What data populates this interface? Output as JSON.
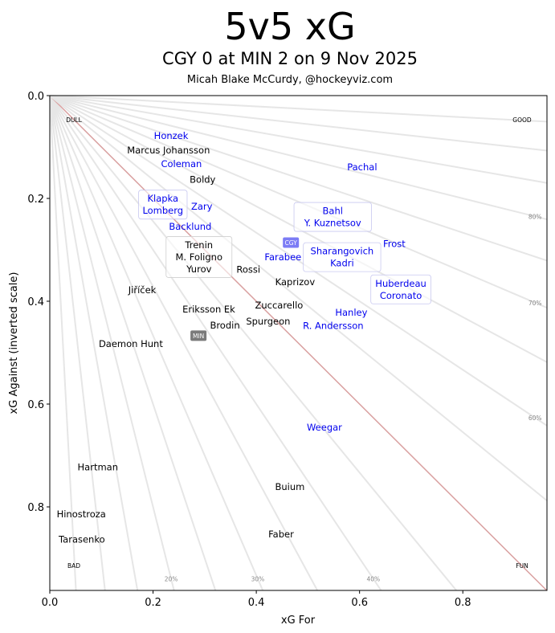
{
  "chart_data": {
    "type": "scatter",
    "title": "5v5 xG",
    "subtitle": "CGY 0 at MIN 2 on 9 Nov 2025",
    "credit": "Micah Blake McCurdy, @hockeyviz.com",
    "xlabel": "xG For",
    "ylabel": "xG Against (inverted scale)",
    "xlim": [
      0,
      0.963
    ],
    "ylim": [
      0,
      0.9625
    ],
    "y_inverted": true,
    "x_ticks": [
      "0.0",
      "0.2",
      "0.4",
      "0.6",
      "0.8"
    ],
    "y_ticks": [
      "0.0",
      "0.2",
      "0.4",
      "0.6",
      "0.8"
    ],
    "corner_labels": {
      "top_left": "DULL",
      "top_right": "GOOD",
      "bottom_left": "BAD",
      "bottom_right": "FUN"
    },
    "share_lines": [
      0.05,
      0.1,
      0.15,
      0.2,
      0.25,
      0.3,
      0.35,
      0.4,
      0.45,
      0.5,
      0.55,
      0.6,
      0.65,
      0.7,
      0.75,
      0.8,
      0.85,
      0.9,
      0.95
    ],
    "share_labels": [
      {
        "share": 0.2,
        "text": "20%"
      },
      {
        "share": 0.3,
        "text": "30%"
      },
      {
        "share": 0.4,
        "text": "40%"
      },
      {
        "share": 0.6,
        "text": "60%"
      },
      {
        "share": 0.7,
        "text": "70%"
      },
      {
        "share": 0.8,
        "text": "80%"
      }
    ],
    "colors": {
      "CGY": "#0000ee",
      "MIN": "#000000",
      "CGY_badge": "#7c7cf5",
      "MIN_badge": "#7a7a7a",
      "even_line": "#d9a0a0",
      "share_line": "#e6e6e6"
    },
    "teams": [
      {
        "name": "CGY",
        "x": 0.467,
        "y": 0.286
      },
      {
        "name": "MIN",
        "x": 0.288,
        "y": 0.467
      }
    ],
    "points": [
      {
        "names": [
          "Honzek"
        ],
        "team": "CGY",
        "x": 0.235,
        "y": 0.078
      },
      {
        "names": [
          "Coleman"
        ],
        "team": "CGY",
        "x": 0.255,
        "y": 0.133
      },
      {
        "names": [
          "Pachal"
        ],
        "team": "CGY",
        "x": 0.605,
        "y": 0.139
      },
      {
        "names": [
          "Klapka",
          "Lomberg"
        ],
        "team": "CGY",
        "x": 0.219,
        "y": 0.212,
        "grouped": true
      },
      {
        "names": [
          "Zary"
        ],
        "team": "CGY",
        "x": 0.257,
        "y": 0.216
      },
      {
        "names": [
          "Backlund"
        ],
        "team": "CGY",
        "x": 0.272,
        "y": 0.255
      },
      {
        "names": [
          "Bahl",
          "Y. Kuznetsov"
        ],
        "team": "CGY",
        "x": 0.548,
        "y": 0.236,
        "grouped": true
      },
      {
        "names": [
          "Sharangovich",
          "Kadri"
        ],
        "team": "CGY",
        "x": 0.535,
        "y": 0.283,
        "grouped": true
      },
      {
        "names": [
          "Frost"
        ],
        "team": "CGY",
        "x": 0.661,
        "y": 0.288
      },
      {
        "names": [
          "Farabee"
        ],
        "team": "CGY",
        "x": 0.489,
        "y": 0.314
      },
      {
        "names": [
          "Huberdeau",
          "Coronato"
        ],
        "team": "CGY",
        "x": 0.68,
        "y": 0.377,
        "grouped": true
      },
      {
        "names": [
          "R. Andersson"
        ],
        "team": "CGY",
        "x": 0.549,
        "y": 0.448
      },
      {
        "names": [
          "Hanley"
        ],
        "team": "CGY",
        "x": 0.584,
        "y": 0.447
      },
      {
        "names": [
          "Weegar"
        ],
        "team": "CGY",
        "x": 0.532,
        "y": 0.645
      },
      {
        "names": [
          "Boldy"
        ],
        "team": "MIN",
        "x": 0.296,
        "y": 0.163
      },
      {
        "names": [
          "Marcus Johansson"
        ],
        "team": "MIN",
        "x": 0.23,
        "y": 0.194
      },
      {
        "names": [
          "Trenin",
          "M. Foligno",
          "Yurov"
        ],
        "team": "MIN",
        "x": 0.289,
        "y": 0.264,
        "grouped": true
      },
      {
        "names": [
          "Rossi"
        ],
        "team": "MIN",
        "x": 0.366,
        "y": 0.338
      },
      {
        "names": [
          "Kaprizov"
        ],
        "team": "MIN",
        "x": 0.444,
        "y": 0.331
      },
      {
        "names": [
          "Jiříček"
        ],
        "team": "MIN",
        "x": 0.179,
        "y": 0.378
      },
      {
        "names": [
          "Eriksson Ek"
        ],
        "team": "MIN",
        "x": 0.308,
        "y": 0.416
      },
      {
        "names": [
          "Zuccarello"
        ],
        "team": "MIN",
        "x": 0.444,
        "y": 0.408
      },
      {
        "names": [
          "Brodin"
        ],
        "team": "MIN",
        "x": 0.333,
        "y": 0.447
      },
      {
        "names": [
          "Spurgeon"
        ],
        "team": "MIN",
        "x": 0.423,
        "y": 0.439
      },
      {
        "names": [
          "Daemon Hunt"
        ],
        "team": "MIN",
        "x": 0.157,
        "y": 0.483
      },
      {
        "names": [
          "Hartman"
        ],
        "team": "MIN",
        "x": 0.093,
        "y": 0.723
      },
      {
        "names": [
          "Buium"
        ],
        "team": "MIN",
        "x": 0.465,
        "y": 0.761
      },
      {
        "names": [
          "Hinostroza"
        ],
        "team": "MIN",
        "x": 0.061,
        "y": 0.814
      },
      {
        "names": [
          "Tarasenko"
        ],
        "team": "MIN",
        "x": 0.062,
        "y": 0.863
      },
      {
        "names": [
          "Faber"
        ],
        "team": "MIN",
        "x": 0.448,
        "y": 0.853
      }
    ]
  }
}
